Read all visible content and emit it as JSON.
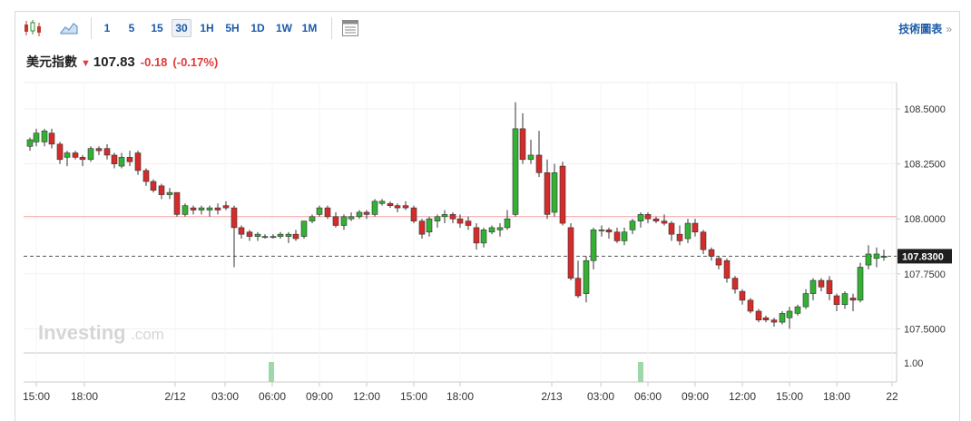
{
  "toolbar": {
    "chart_type_icon": "candlestick-icon",
    "area_icon": "area-chart-icon",
    "intervals": [
      "1",
      "5",
      "15",
      "30",
      "1H",
      "5H",
      "1D",
      "1W",
      "1M"
    ],
    "active_interval": "30",
    "table_icon": "data-table-icon",
    "tech_chart_label": "技術圖表",
    "tech_chart_chevron": "»"
  },
  "quote": {
    "name": "美元指數",
    "arrow": "🡇",
    "price": "107.83",
    "change": "-0.18",
    "change_pct": "(-0.17%)"
  },
  "watermark": {
    "brand": "Investing",
    "suffix": ".com"
  },
  "colors": {
    "up": "#34b034",
    "down": "#d42b2b",
    "current_line": "#555555",
    "prev_close_line": "#f2a3a3",
    "volume": "#9fd8a8",
    "accent": "#1a5aa8"
  },
  "chart_data": {
    "type": "candlestick",
    "y_ticks": [
      "107.5000",
      "107.7500",
      "108.0000",
      "108.2500",
      "108.5000"
    ],
    "y_tick_values": [
      107.5,
      107.75,
      108.0,
      108.25,
      108.5
    ],
    "ylim": [
      107.39,
      108.62
    ],
    "current_value": 107.83,
    "current_label": "107.8300",
    "prev_close": 108.01,
    "volume_axis_label": "1.00",
    "volume_bars": [
      {
        "x": 299,
        "value": 1.0
      },
      {
        "x": 706,
        "value": 1.0
      }
    ],
    "x_ticks": [
      "15:00",
      "18:00",
      "2/12",
      "03:00",
      "06:00",
      "09:00",
      "12:00",
      "15:00",
      "18:00",
      "2/13",
      "03:00",
      "06:00",
      "09:00",
      "12:00",
      "15:00",
      "18:00",
      "22"
    ],
    "x_tick_positions": [
      40,
      93,
      193,
      248,
      300,
      352,
      404,
      456,
      507,
      608,
      662,
      714,
      766,
      818,
      870,
      922,
      983
    ],
    "candles": [
      [
        33,
        108.33,
        108.37,
        108.31,
        108.36
      ],
      [
        40,
        108.35,
        108.41,
        108.33,
        108.39
      ],
      [
        49,
        108.35,
        108.41,
        108.33,
        108.4
      ],
      [
        57,
        108.39,
        108.41,
        108.32,
        108.34
      ],
      [
        66,
        108.34,
        108.35,
        108.25,
        108.27
      ],
      [
        74,
        108.28,
        108.31,
        108.24,
        108.3
      ],
      [
        83,
        108.3,
        108.31,
        108.27,
        108.28
      ],
      [
        91,
        108.28,
        108.29,
        108.24,
        108.27
      ],
      [
        100,
        108.27,
        108.33,
        108.26,
        108.32
      ],
      [
        109,
        108.32,
        108.33,
        108.29,
        108.31
      ],
      [
        118,
        108.32,
        108.34,
        108.27,
        108.29
      ],
      [
        126,
        108.29,
        108.3,
        108.23,
        108.25
      ],
      [
        134,
        108.24,
        108.3,
        108.23,
        108.28
      ],
      [
        143,
        108.28,
        108.31,
        108.24,
        108.26
      ],
      [
        152,
        108.3,
        108.31,
        108.2,
        108.22
      ],
      [
        161,
        108.22,
        108.23,
        108.15,
        108.17
      ],
      [
        169,
        108.17,
        108.18,
        108.12,
        108.13
      ],
      [
        178,
        108.15,
        108.16,
        108.09,
        108.11
      ],
      [
        187,
        108.11,
        108.14,
        108.09,
        108.12
      ],
      [
        195,
        108.12,
        108.12,
        108.01,
        108.02
      ],
      [
        204,
        108.02,
        108.07,
        108.01,
        108.06
      ],
      [
        213,
        108.05,
        108.06,
        108.02,
        108.04
      ],
      [
        222,
        108.04,
        108.06,
        108.02,
        108.05
      ],
      [
        231,
        108.04,
        108.06,
        108.01,
        108.05
      ],
      [
        240,
        108.05,
        108.07,
        108.02,
        108.04
      ],
      [
        249,
        108.06,
        108.08,
        108.04,
        108.05
      ],
      [
        258,
        108.05,
        108.06,
        107.78,
        107.96
      ],
      [
        266,
        107.96,
        107.97,
        107.91,
        107.93
      ],
      [
        275,
        107.94,
        107.95,
        107.9,
        107.92
      ],
      [
        284,
        107.92,
        107.94,
        107.9,
        107.93
      ],
      [
        292,
        107.92,
        107.93,
        107.91,
        107.92
      ],
      [
        301,
        107.92,
        107.93,
        107.91,
        107.92
      ],
      [
        309,
        107.92,
        107.94,
        107.91,
        107.93
      ],
      [
        318,
        107.92,
        107.94,
        107.89,
        107.93
      ],
      [
        326,
        107.93,
        107.95,
        107.9,
        107.91
      ],
      [
        335,
        107.92,
        107.99,
        107.91,
        107.99
      ],
      [
        344,
        107.99,
        108.02,
        107.98,
        108.01
      ],
      [
        352,
        108.02,
        108.06,
        108.01,
        108.05
      ],
      [
        361,
        108.05,
        108.06,
        108.0,
        108.01
      ],
      [
        370,
        108.01,
        108.03,
        107.96,
        107.97
      ],
      [
        379,
        107.97,
        108.02,
        107.95,
        108.01
      ],
      [
        387,
        108.0,
        108.03,
        107.99,
        108.01
      ],
      [
        396,
        108.01,
        108.04,
        108.0,
        108.03
      ],
      [
        404,
        108.03,
        108.04,
        108.0,
        108.02
      ],
      [
        413,
        108.02,
        108.09,
        108.01,
        108.08
      ],
      [
        421,
        108.07,
        108.09,
        108.06,
        108.08
      ],
      [
        430,
        108.07,
        108.08,
        108.05,
        108.06
      ],
      [
        438,
        108.06,
        108.07,
        108.03,
        108.05
      ],
      [
        447,
        108.06,
        108.08,
        108.04,
        108.05
      ],
      [
        456,
        108.05,
        108.06,
        107.98,
        107.99
      ],
      [
        465,
        107.99,
        108.0,
        107.91,
        107.93
      ],
      [
        473,
        107.94,
        108.01,
        107.92,
        108.0
      ],
      [
        482,
        107.99,
        108.02,
        107.96,
        108.01
      ],
      [
        490,
        108.01,
        108.04,
        107.98,
        108.02
      ],
      [
        499,
        108.02,
        108.03,
        107.98,
        108.0
      ],
      [
        507,
        108.0,
        108.02,
        107.96,
        107.98
      ],
      [
        516,
        107.99,
        108.01,
        107.95,
        107.97
      ],
      [
        525,
        107.96,
        107.98,
        107.86,
        107.89
      ],
      [
        533,
        107.89,
        107.96,
        107.87,
        107.95
      ],
      [
        542,
        107.94,
        107.97,
        107.93,
        107.96
      ],
      [
        551,
        107.95,
        107.98,
        107.92,
        107.96
      ],
      [
        559,
        107.96,
        108.04,
        107.95,
        108.0
      ],
      [
        568,
        108.02,
        108.53,
        108.01,
        108.41
      ],
      [
        576,
        108.41,
        108.48,
        108.25,
        108.27
      ],
      [
        585,
        108.27,
        108.36,
        108.25,
        108.29
      ],
      [
        594,
        108.29,
        108.4,
        108.19,
        108.21
      ],
      [
        603,
        108.21,
        108.27,
        108.0,
        108.02
      ],
      [
        611,
        108.03,
        108.25,
        108.01,
        108.21
      ],
      [
        620,
        108.24,
        108.26,
        107.97,
        107.98
      ],
      [
        629,
        107.96,
        107.98,
        107.72,
        107.73
      ],
      [
        637,
        107.73,
        107.81,
        107.64,
        107.65
      ],
      [
        646,
        107.66,
        107.83,
        107.62,
        107.81
      ],
      [
        654,
        107.81,
        107.96,
        107.77,
        107.95
      ],
      [
        663,
        107.95,
        107.97,
        107.92,
        107.95
      ],
      [
        671,
        107.95,
        107.96,
        107.91,
        107.94
      ],
      [
        680,
        107.94,
        107.96,
        107.89,
        107.9
      ],
      [
        688,
        107.9,
        107.96,
        107.88,
        107.94
      ],
      [
        697,
        107.95,
        108.0,
        107.93,
        107.99
      ],
      [
        706,
        107.99,
        108.03,
        107.96,
        108.02
      ],
      [
        714,
        108.02,
        108.03,
        107.98,
        108.0
      ],
      [
        723,
        108.0,
        108.01,
        107.98,
        107.99
      ],
      [
        732,
        107.99,
        108.02,
        107.97,
        107.98
      ],
      [
        740,
        107.98,
        107.99,
        107.9,
        107.93
      ],
      [
        749,
        107.93,
        107.97,
        107.88,
        107.9
      ],
      [
        758,
        107.91,
        108.0,
        107.89,
        107.98
      ],
      [
        766,
        107.98,
        108.0,
        107.92,
        107.94
      ],
      [
        775,
        107.94,
        107.95,
        107.84,
        107.86
      ],
      [
        784,
        107.86,
        107.87,
        107.81,
        107.83
      ],
      [
        792,
        107.82,
        107.83,
        107.77,
        107.79
      ],
      [
        801,
        107.81,
        107.82,
        107.71,
        107.73
      ],
      [
        810,
        107.73,
        107.74,
        107.66,
        107.68
      ],
      [
        818,
        107.67,
        107.68,
        107.61,
        107.63
      ],
      [
        827,
        107.63,
        107.64,
        107.57,
        107.58
      ],
      [
        836,
        107.58,
        107.59,
        107.53,
        107.54
      ],
      [
        844,
        107.55,
        107.56,
        107.53,
        107.54
      ],
      [
        853,
        107.54,
        107.55,
        107.51,
        107.53
      ],
      [
        862,
        107.53,
        107.58,
        107.52,
        107.57
      ],
      [
        870,
        107.55,
        107.6,
        107.5,
        107.58
      ],
      [
        879,
        107.57,
        107.61,
        107.56,
        107.6
      ],
      [
        888,
        107.6,
        107.68,
        107.59,
        107.66
      ],
      [
        896,
        107.66,
        107.73,
        107.63,
        107.72
      ],
      [
        905,
        107.72,
        107.73,
        107.67,
        107.69
      ],
      [
        914,
        107.72,
        107.74,
        107.63,
        107.66
      ],
      [
        922,
        107.65,
        107.66,
        107.58,
        107.61
      ],
      [
        931,
        107.61,
        107.67,
        107.59,
        107.66
      ],
      [
        940,
        107.64,
        107.66,
        107.58,
        107.63
      ],
      [
        948,
        107.63,
        107.8,
        107.62,
        107.78
      ],
      [
        957,
        107.79,
        107.88,
        107.77,
        107.84
      ],
      [
        966,
        107.82,
        107.87,
        107.78,
        107.84
      ],
      [
        974,
        107.83,
        107.86,
        107.81,
        107.83
      ]
    ]
  }
}
